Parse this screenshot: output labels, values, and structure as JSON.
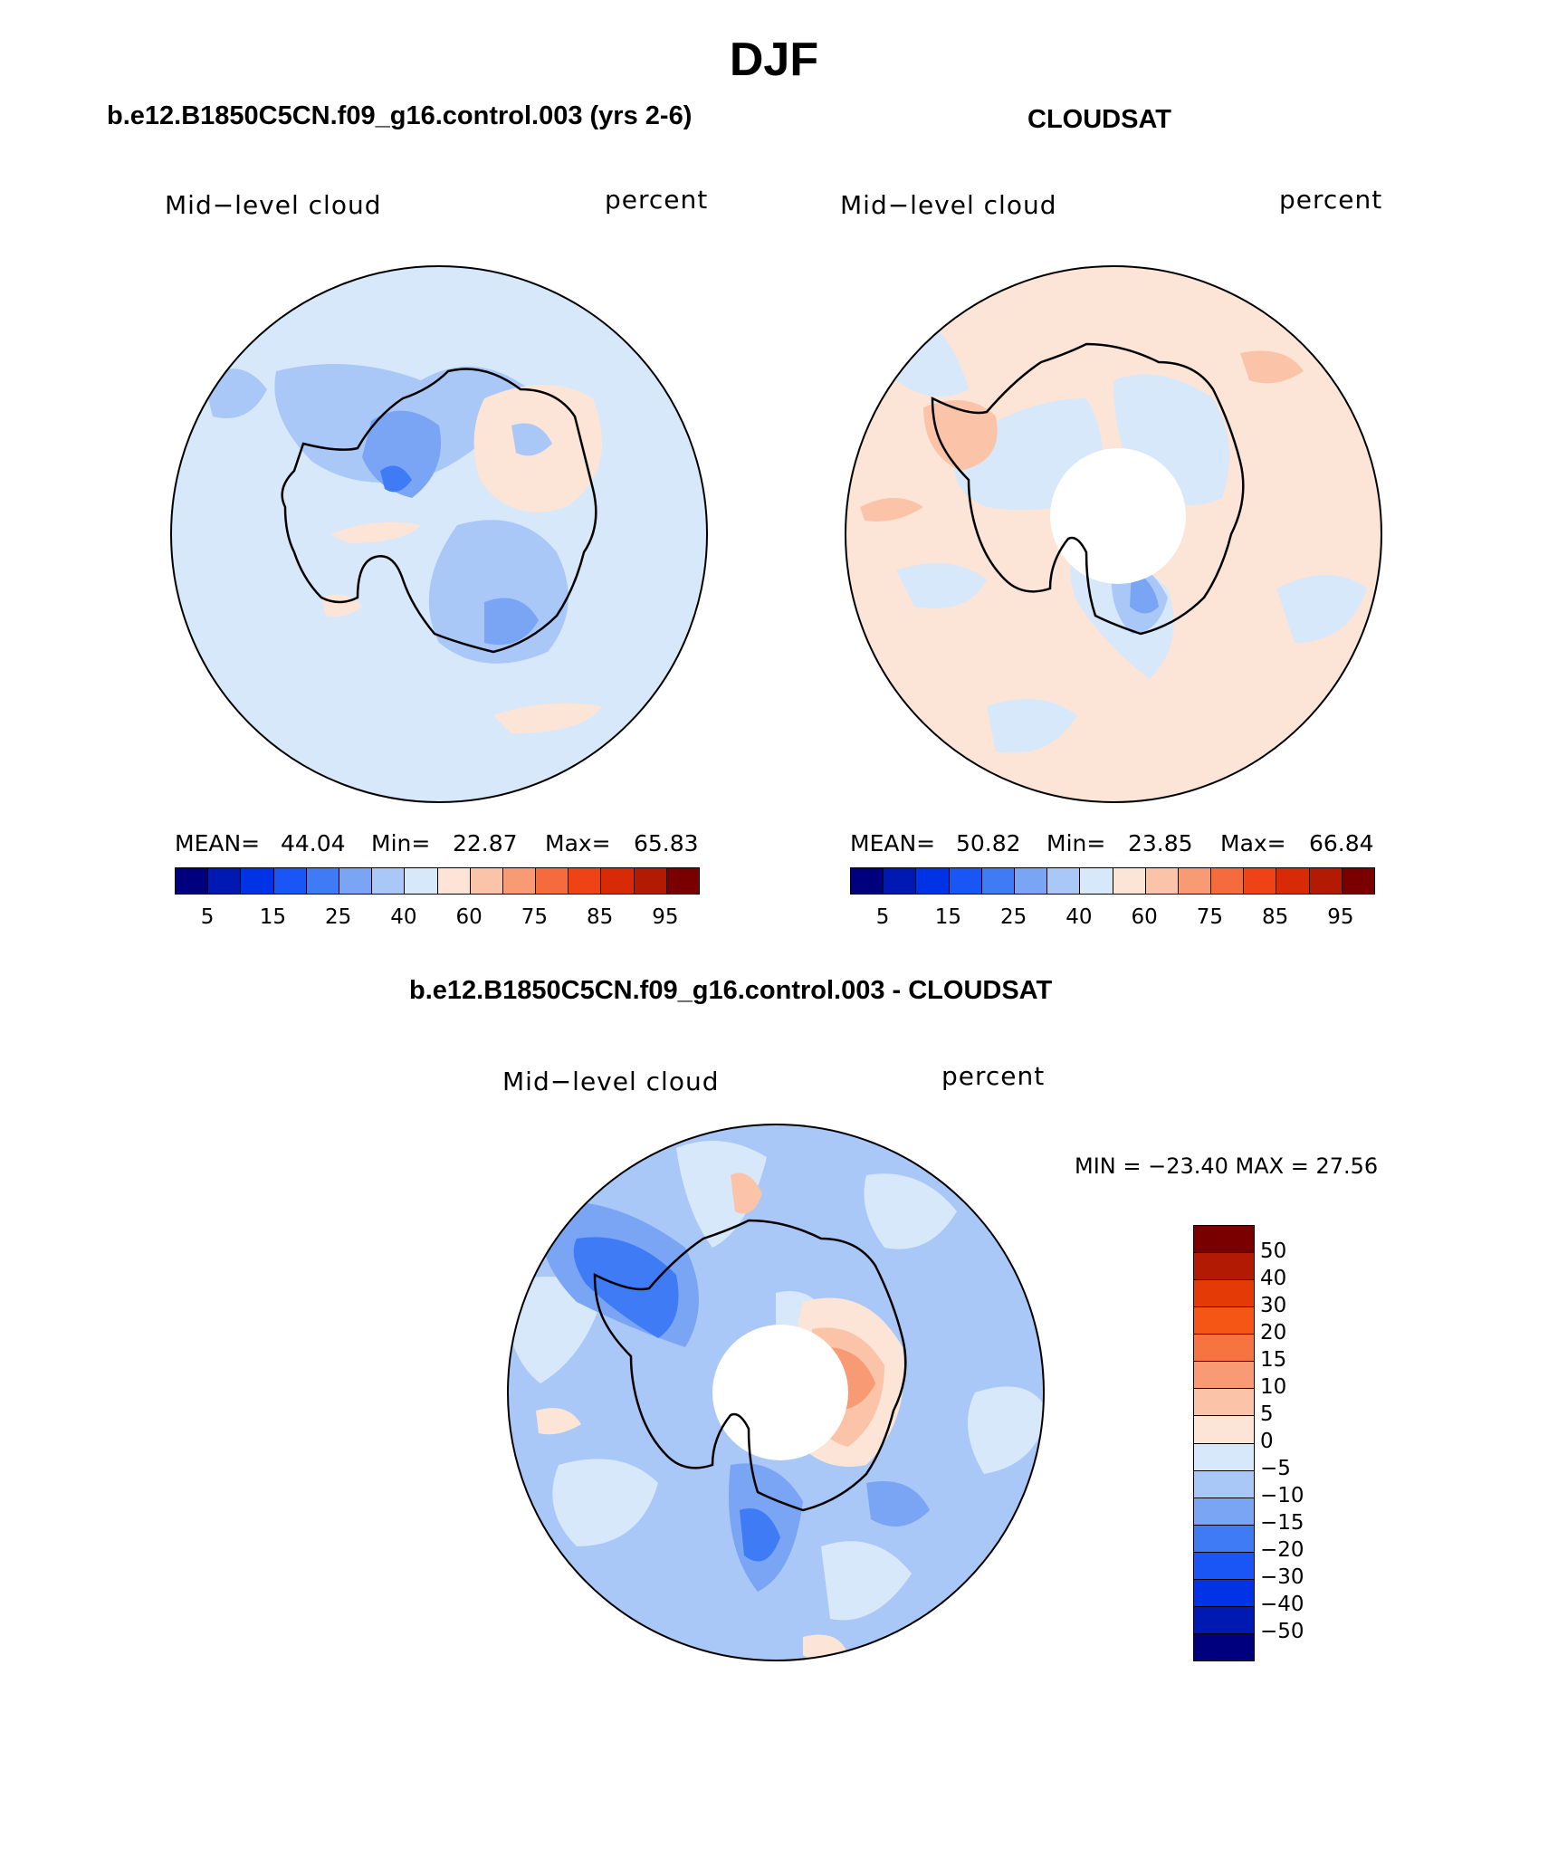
{
  "figure": {
    "season": "DJF",
    "diff_title": "b.e12.B1850C5CN.f09_g16.control.003 - CLOUDSAT"
  },
  "panels": [
    {
      "title": "b.e12.B1850C5CN.f09_g16.control.003 (yrs 2-6)",
      "variable": "Mid−level cloud",
      "units": "percent",
      "stats": {
        "mean_label": "MEAN=",
        "mean": "44.04",
        "min_label": "Min=",
        "min": "22.87",
        "max_label": "Max=",
        "max": "65.83"
      },
      "has_polar_hole": false
    },
    {
      "title": "CLOUDSAT",
      "variable": "Mid−level cloud",
      "units": "percent",
      "stats": {
        "mean_label": "MEAN=",
        "mean": "50.82",
        "min_label": "Min=",
        "min": "23.85",
        "max_label": "Max=",
        "max": "66.84"
      },
      "has_polar_hole": true
    },
    {
      "title": "b.e12.B1850C5CN.f09_g16.control.003 - CLOUDSAT",
      "variable": "Mid−level cloud",
      "units": "percent",
      "minmax_text": "MIN = −23.40 MAX =   27.56",
      "has_polar_hole": true
    }
  ],
  "abs_colorbar": {
    "colors": [
      "#00007f",
      "#0019b3",
      "#0033e5",
      "#1a55f5",
      "#3f7bf5",
      "#7aa5f5",
      "#aac8f7",
      "#d7e8fb",
      "#fce5d6",
      "#fbc4a8",
      "#f89a73",
      "#f56b3e",
      "#ef4216",
      "#d82a06",
      "#b21a03",
      "#7a0000"
    ],
    "tick_labels": [
      "5",
      "15",
      "25",
      "40",
      "60",
      "75",
      "85",
      "95"
    ]
  },
  "diff_colorbar": {
    "colors_top_to_bottom": [
      "#7a0000",
      "#b21a03",
      "#e43a05",
      "#f55515",
      "#f5743f",
      "#f89a73",
      "#fbc4a8",
      "#fce5d6",
      "#d7e8fb",
      "#aac8f7",
      "#7aa5f5",
      "#3f7bf5",
      "#1a55f5",
      "#0033e5",
      "#0019b3",
      "#00007f"
    ],
    "tick_labels_top_to_bottom": [
      "50",
      "40",
      "30",
      "20",
      "15",
      "10",
      "5",
      "0",
      "−5",
      "−10",
      "−15",
      "−20",
      "−30",
      "−40",
      "−50"
    ]
  },
  "map_colors": {
    "panel1_base": "#d7e8fb",
    "panel2_base": "#fce5d6",
    "panel3_base": "#aac8f7"
  }
}
